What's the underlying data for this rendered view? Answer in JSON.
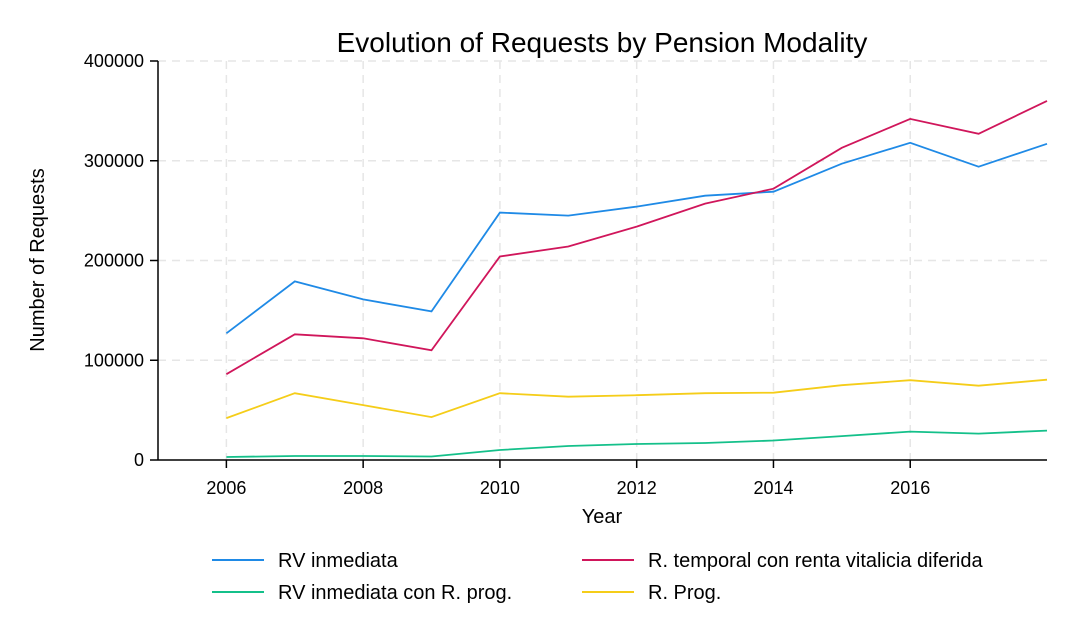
{
  "chart_data": {
    "type": "line",
    "title": "Evolution of Requests by Pension Modality",
    "xlabel": "Year",
    "ylabel": "Number of Requests",
    "x": [
      2006,
      2007,
      2008,
      2009,
      2010,
      2011,
      2012,
      2013,
      2014,
      2015,
      2016,
      2017,
      2018
    ],
    "xlim": [
      2005,
      2018
    ],
    "ylim": [
      0,
      400000
    ],
    "x_ticks": [
      "2006",
      "2008",
      "2010",
      "2012",
      "2014",
      "2016"
    ],
    "y_ticks": [
      "0",
      "100000",
      "200000",
      "300000",
      "400000"
    ],
    "grid": true,
    "legend_position": "bottom",
    "series": [
      {
        "name": "RV inmediata",
        "color": "#1f8ae6",
        "values": [
          127000,
          179000,
          161000,
          149000,
          248000,
          245000,
          254000,
          265000,
          269000,
          297000,
          318000,
          294000,
          317000
        ]
      },
      {
        "name": "R. temporal con renta vitalicia diferida",
        "color": "#d0165b",
        "values": [
          86000,
          126000,
          122000,
          110000,
          204000,
          214000,
          234000,
          257000,
          272000,
          313000,
          342000,
          327000,
          360000
        ]
      },
      {
        "name": "RV inmediata con R. prog.",
        "color": "#14c08a",
        "values": [
          3000,
          4000,
          4000,
          3500,
          10000,
          14000,
          16000,
          17000,
          19500,
          24000,
          28500,
          26500,
          29500
        ]
      },
      {
        "name": "R. Prog.",
        "color": "#f5cd19",
        "values": [
          42000,
          67000,
          55000,
          43000,
          67000,
          63500,
          65000,
          67000,
          67500,
          75000,
          80000,
          74500,
          80500
        ]
      }
    ]
  }
}
